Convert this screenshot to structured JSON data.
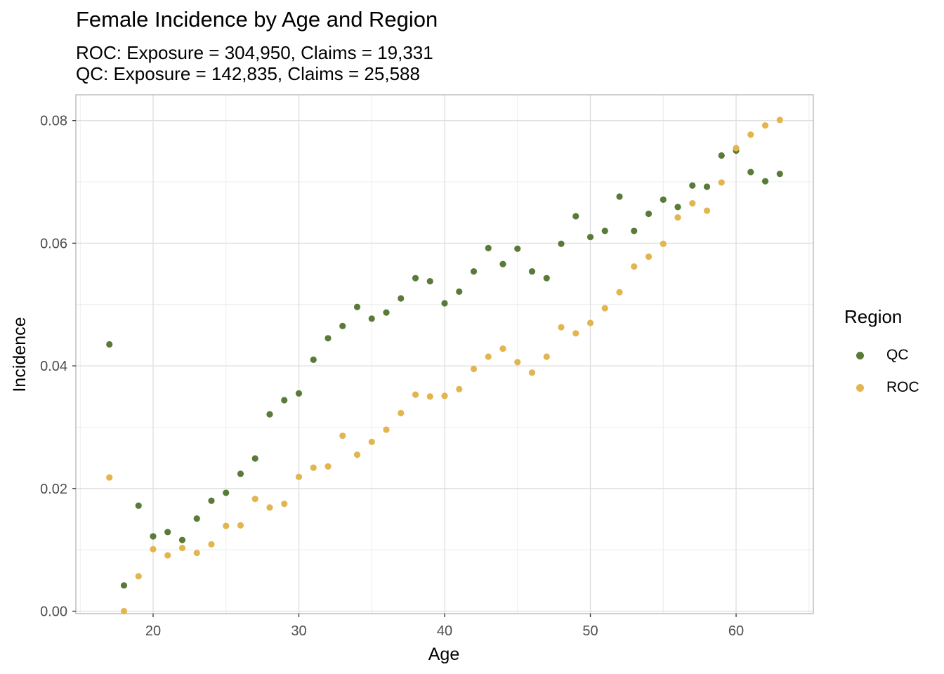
{
  "chart_data": {
    "type": "scatter",
    "title": "Female Incidence by Age and Region",
    "subtitle_lines": [
      "ROC: Exposure = 304,950, Claims = 19,331",
      "QC: Exposure = 142,835, Claims = 25,588"
    ],
    "xlabel": "Age",
    "ylabel": "Incidence",
    "xlim": [
      14.7,
      65.3
    ],
    "ylim": [
      -0.0004,
      0.0842
    ],
    "x_ticks": [
      20,
      30,
      40,
      50,
      60
    ],
    "x_tick_labels": [
      "20",
      "30",
      "40",
      "50",
      "60"
    ],
    "y_ticks": [
      0.0,
      0.02,
      0.04,
      0.06,
      0.08
    ],
    "y_tick_labels": [
      "0.00",
      "0.02",
      "0.04",
      "0.06",
      "0.08"
    ],
    "grid": true,
    "legend": {
      "title": "Region",
      "position": "right"
    },
    "x": [
      17,
      18,
      19,
      20,
      21,
      22,
      23,
      24,
      25,
      26,
      27,
      28,
      29,
      30,
      31,
      32,
      33,
      34,
      35,
      36,
      37,
      38,
      39,
      40,
      41,
      42,
      43,
      44,
      45,
      46,
      47,
      48,
      49,
      50,
      51,
      52,
      53,
      54,
      55,
      56,
      57,
      58,
      59,
      60,
      61,
      62,
      63
    ],
    "series": [
      {
        "name": "QC",
        "color": "#5a7a3a",
        "values": [
          0.0435,
          0.0042,
          0.0172,
          0.0122,
          0.0129,
          0.0116,
          0.0151,
          0.018,
          0.0193,
          0.0224,
          0.0249,
          0.0321,
          0.0344,
          0.0355,
          0.041,
          0.0445,
          0.0465,
          0.0496,
          0.0477,
          0.0487,
          0.051,
          0.0543,
          0.0538,
          0.0502,
          0.0521,
          0.0554,
          0.0592,
          0.0566,
          0.0591,
          0.0554,
          0.0543,
          0.0599,
          0.0644,
          0.061,
          0.062,
          0.0676,
          0.062,
          0.0648,
          0.0671,
          0.0659,
          0.0694,
          0.0692,
          0.0743,
          0.0751,
          0.0716,
          0.0701,
          0.0713
        ]
      },
      {
        "name": "ROC",
        "color": "#e3b54f",
        "values": [
          0.0218,
          0.0,
          0.0057,
          0.0101,
          0.0091,
          0.0103,
          0.0095,
          0.0109,
          0.0139,
          0.014,
          0.0183,
          0.0169,
          0.0175,
          0.0219,
          0.0234,
          0.0236,
          0.0286,
          0.0255,
          0.0276,
          0.0296,
          0.0323,
          0.0353,
          0.035,
          0.0351,
          0.0362,
          0.0395,
          0.0415,
          0.0428,
          0.0406,
          0.0389,
          0.0415,
          0.0463,
          0.0453,
          0.047,
          0.0494,
          0.052,
          0.0562,
          0.0578,
          0.0599,
          0.0642,
          0.0665,
          0.0653,
          0.0699,
          0.0755,
          0.0777,
          0.0792,
          0.0801
        ]
      }
    ]
  }
}
